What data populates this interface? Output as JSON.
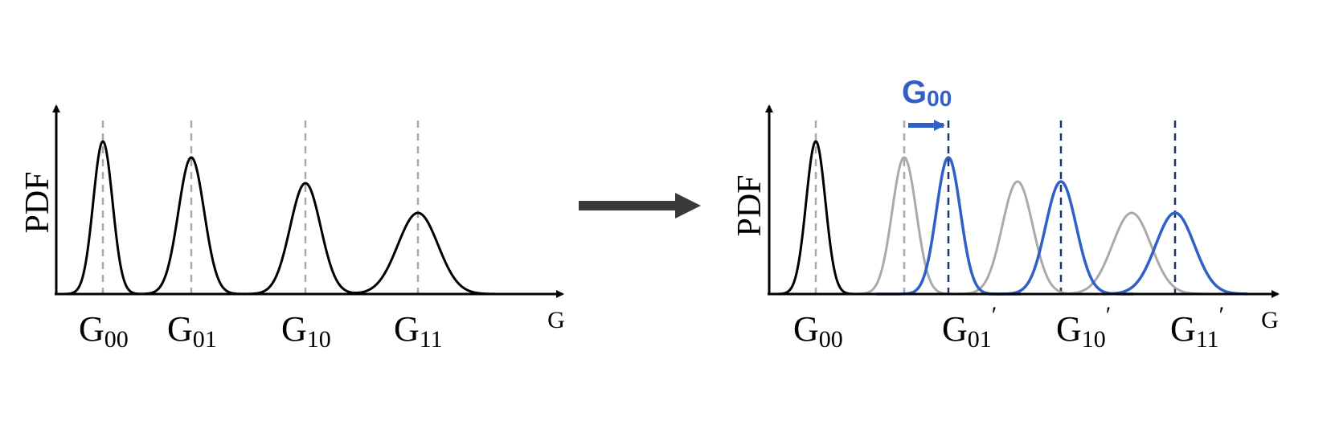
{
  "colors": {
    "black": "#000000",
    "gray": "#aaaaaa",
    "blue": "#2f5fc7",
    "navy": "#1f3566",
    "arrow": "#3a3a3a",
    "dash_gray": "#a8a8a8"
  },
  "left_panel": {
    "ylabel": "PDF",
    "xlabel": "G",
    "levels": [
      {
        "main": "G",
        "sub": "00"
      },
      {
        "main": "G",
        "sub": "01"
      },
      {
        "main": "G",
        "sub": "10"
      },
      {
        "main": "G",
        "sub": "11"
      }
    ]
  },
  "right_panel": {
    "ylabel": "PDF",
    "xlabel": "G",
    "shift_label": {
      "main": "G",
      "sub": "00"
    },
    "levels": [
      {
        "main": "G",
        "sub": "00",
        "prime": ""
      },
      {
        "main": "G",
        "sub": "01",
        "prime": "′"
      },
      {
        "main": "G",
        "sub": "10",
        "prime": "′"
      },
      {
        "main": "G",
        "sub": "11",
        "prime": "′"
      }
    ]
  }
}
